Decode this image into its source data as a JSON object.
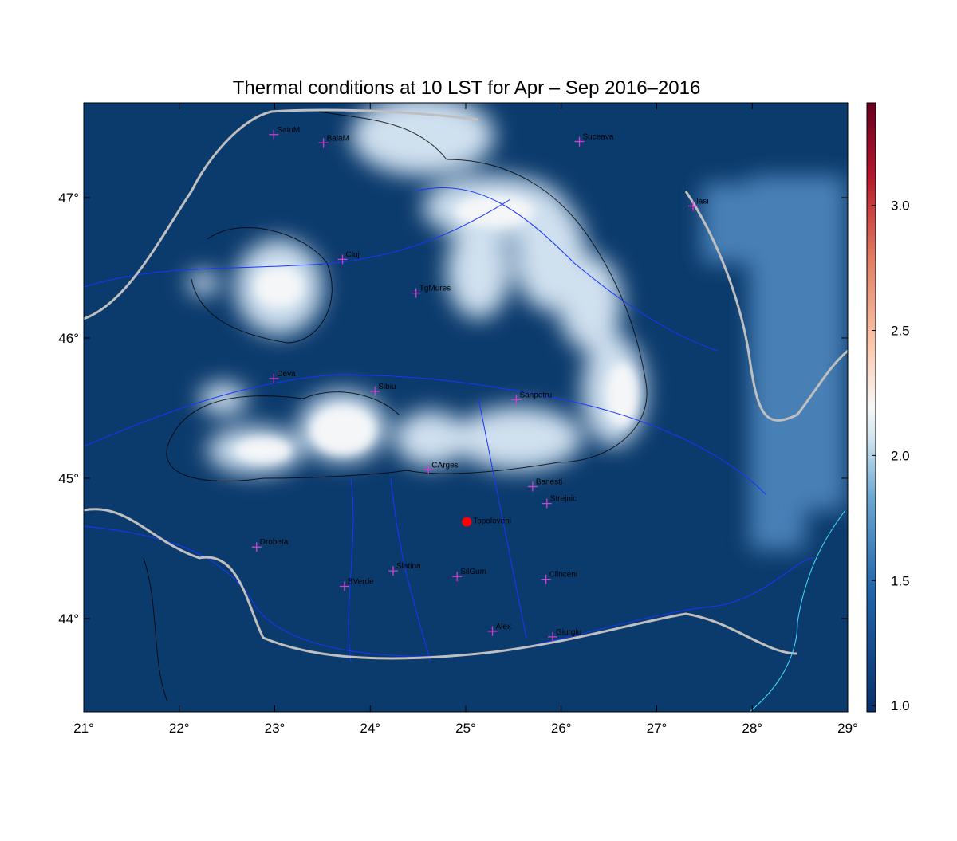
{
  "title": "Thermal conditions at 10 LST for Apr – Sep  2016–2016",
  "map": {
    "xlim": [
      21,
      29
    ],
    "ylim": [
      43.335,
      47.676
    ],
    "xticks": [
      {
        "value": 21,
        "label": "21°"
      },
      {
        "value": 22,
        "label": "22°"
      },
      {
        "value": 23,
        "label": "23°"
      },
      {
        "value": 24,
        "label": "24°"
      },
      {
        "value": 25,
        "label": "25°"
      },
      {
        "value": 26,
        "label": "26°"
      },
      {
        "value": 27,
        "label": "27°"
      },
      {
        "value": 28,
        "label": "28°"
      },
      {
        "value": 29,
        "label": "29°"
      }
    ],
    "yticks": [
      {
        "value": 44,
        "label": "44°"
      },
      {
        "value": 45,
        "label": "45°"
      },
      {
        "value": 46,
        "label": "46°"
      },
      {
        "value": 47,
        "label": "47°"
      }
    ]
  },
  "colorbar": {
    "lim": [
      0.975,
      3.41
    ],
    "ticks": [
      {
        "value": 1,
        "label": "1.0"
      },
      {
        "value": 1.5,
        "label": "1.5"
      },
      {
        "value": 2,
        "label": "2.0"
      },
      {
        "value": 2.5,
        "label": "2.5"
      },
      {
        "value": 3,
        "label": "3.0"
      }
    ]
  },
  "stations": [
    {
      "name": "SatuM",
      "lon": 22.99,
      "lat": 47.45
    },
    {
      "name": "BaiaM",
      "lon": 23.51,
      "lat": 47.39
    },
    {
      "name": "Suceava",
      "lon": 26.19,
      "lat": 47.4
    },
    {
      "name": "Iasi",
      "lon": 27.38,
      "lat": 46.94
    },
    {
      "name": "Cluj",
      "lon": 23.71,
      "lat": 46.56
    },
    {
      "name": "TgMures",
      "lon": 24.48,
      "lat": 46.32
    },
    {
      "name": "Deva",
      "lon": 22.99,
      "lat": 45.71
    },
    {
      "name": "Sibiu",
      "lon": 24.05,
      "lat": 45.62
    },
    {
      "name": "Sanpetru",
      "lon": 25.53,
      "lat": 45.56
    },
    {
      "name": "CArges",
      "lon": 24.61,
      "lat": 45.06
    },
    {
      "name": "Banesti",
      "lon": 25.7,
      "lat": 44.94
    },
    {
      "name": "Strejnic",
      "lon": 25.85,
      "lat": 44.82
    },
    {
      "name": "Drobeta",
      "lon": 22.81,
      "lat": 44.51
    },
    {
      "name": "Slatina",
      "lon": 24.24,
      "lat": 44.34
    },
    {
      "name": "SilGum",
      "lon": 24.91,
      "lat": 44.3
    },
    {
      "name": "Clinceni",
      "lon": 25.84,
      "lat": 44.28
    },
    {
      "name": "BVerde",
      "lon": 23.73,
      "lat": 44.23
    },
    {
      "name": "Alex",
      "lon": 25.28,
      "lat": 43.91
    },
    {
      "name": "Giurgiu",
      "lon": 25.91,
      "lat": 43.87
    }
  ],
  "highlight": {
    "name": "Topoloveni",
    "lon": 25.01,
    "lat": 44.69
  }
}
